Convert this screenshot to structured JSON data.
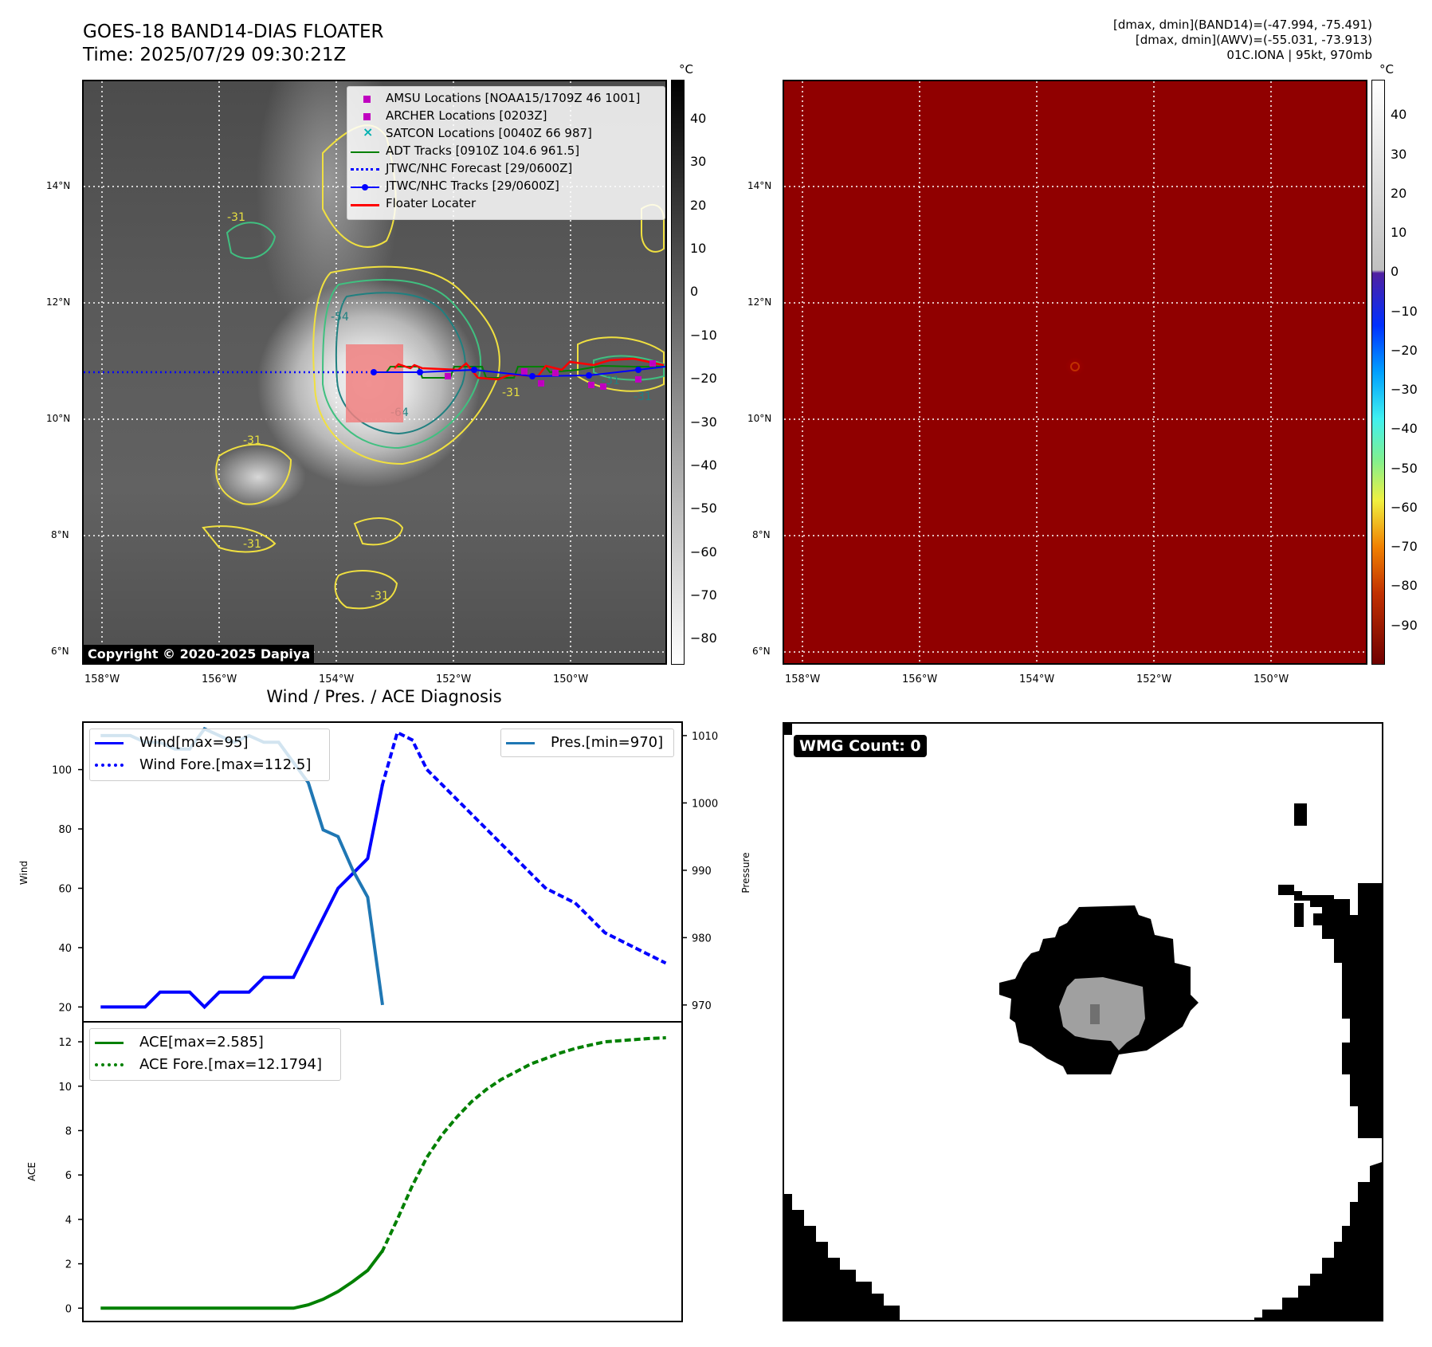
{
  "header": {
    "title_line1": "GOES-18 BAND14-DIAS FLOATER",
    "title_line2": "Time: 2025/07/29 09:30:21Z",
    "stats_line1": "[dmax, dmin](BAND14)=(-47.994, -75.491)",
    "stats_line2": "[dmax, dmin](AWV)=(-55.031, -73.913)",
    "stats_line3": "01C.IONA | 95kt, 970mb"
  },
  "colors": {
    "jtwc_blue": "#0000ff",
    "adt_green": "#008000",
    "floater_red": "#ff0000",
    "amsu_magenta": "#c000c0",
    "satcon_cyan": "#00b0b0",
    "pressure_blue": "#1f77b4",
    "contour_yellow": "#f0e040",
    "contour_green": "#40c080",
    "contour_teal": "#208080"
  },
  "ir_map": {
    "colorbar_unit": "°C",
    "colorbar_ticks": [
      "40",
      "30",
      "20",
      "10",
      "0",
      "−10",
      "−20",
      "−30",
      "−40",
      "−50",
      "−60",
      "−70",
      "−80"
    ],
    "lat_labels": [
      "14°N",
      "12°N",
      "10°N",
      "8°N",
      "6°N"
    ],
    "lon_labels": [
      "158°W",
      "156°W",
      "154°W",
      "152°W",
      "150°W"
    ],
    "copyright": "Copyright © 2020-2025 Dapiya",
    "contour_labels": [
      "-31",
      "-31",
      "-31",
      "-31",
      "-31",
      "-54",
      "-64",
      "-31",
      "-31"
    ],
    "legend": [
      {
        "label": "AMSU Locations [NOAA15/1709Z 46 1001]",
        "marker": "square",
        "color": "#c000c0"
      },
      {
        "label": "ARCHER Locations [0203Z]",
        "marker": "square",
        "color": "#c000c0"
      },
      {
        "label": "SATCON Locations [0040Z 66 987]",
        "marker": "x",
        "color": "#00b0b0"
      },
      {
        "label": "ADT Tracks [0910Z 104.6 961.5]",
        "marker": "line",
        "color": "#008000"
      },
      {
        "label": "JTWC/NHC Forecast [29/0600Z]",
        "marker": "dotted",
        "color": "#0000ff"
      },
      {
        "label": "JTWC/NHC Tracks [29/0600Z]",
        "marker": "line-dot",
        "color": "#0000ff"
      },
      {
        "label": "Floater Locater",
        "marker": "line",
        "color": "#ff0000"
      }
    ]
  },
  "awv_map": {
    "colorbar_unit": "°C",
    "colorbar_ticks": [
      "40",
      "30",
      "20",
      "10",
      "0",
      "−10",
      "−20",
      "−30",
      "−40",
      "−50",
      "−60",
      "−70",
      "−80",
      "−90"
    ],
    "lat_labels": [
      "14°N",
      "12°N",
      "10°N",
      "8°N",
      "6°N"
    ],
    "lon_labels": [
      "158°W",
      "156°W",
      "154°W",
      "152°W",
      "150°W"
    ]
  },
  "wmg": {
    "label": "WMG Count: 0"
  },
  "chart_data": [
    {
      "type": "line",
      "title": "Wind / Pres. / ACE Diagnosis",
      "ylabel": "Wind",
      "y2label": "Pressure",
      "ylim": [
        15,
        116
      ],
      "y2lim": [
        967.5,
        1012
      ],
      "yticks": [
        20,
        40,
        60,
        80,
        100
      ],
      "y2ticks": [
        970,
        980,
        990,
        1000,
        1010
      ],
      "series": [
        {
          "name": "Wind[max=95]",
          "style": "solid",
          "color": "#0000ff",
          "x": [
            0,
            1,
            2,
            3,
            4,
            5,
            6,
            7,
            8,
            9,
            10,
            11,
            12,
            13,
            14,
            15,
            16,
            17,
            18,
            19
          ],
          "values": [
            20,
            20,
            20,
            20,
            25,
            25,
            25,
            20,
            25,
            25,
            25,
            30,
            30,
            30,
            40,
            50,
            60,
            65,
            70,
            95
          ]
        },
        {
          "name": "Wind Fore.[max=112.5]",
          "style": "dotted",
          "color": "#0000ff",
          "x": [
            19,
            20,
            21,
            22,
            23,
            24,
            25,
            26,
            27,
            28,
            29,
            30,
            31,
            32,
            33,
            34,
            35,
            36,
            37,
            38
          ],
          "values": [
            95,
            112.5,
            110,
            100,
            95,
            90,
            85,
            80,
            75,
            70,
            65,
            60,
            57.5,
            55,
            50,
            45,
            42.5,
            40,
            37.5,
            35
          ]
        },
        {
          "name": "Pres.[min=970]",
          "style": "solid",
          "color": "#1f77b4",
          "axis": "right",
          "x": [
            0,
            1,
            2,
            3,
            4,
            5,
            6,
            7,
            8,
            9,
            10,
            11,
            12,
            13,
            14,
            15,
            16,
            17,
            18,
            19
          ],
          "values": [
            1010,
            1010,
            1010,
            1009,
            1009,
            1008,
            1008,
            1011,
            1010,
            1009,
            1010,
            1009,
            1009,
            1006,
            1003,
            996,
            995,
            990,
            986,
            970
          ]
        }
      ],
      "legend_left": [
        "Wind[max=95]",
        "Wind Fore.[max=112.5]"
      ],
      "legend_right": [
        "Pres.[min=970]"
      ]
    },
    {
      "type": "line",
      "ylabel": "ACE",
      "ylim": [
        -0.6,
        12.9
      ],
      "yticks": [
        0,
        2,
        4,
        6,
        8,
        10,
        12
      ],
      "series": [
        {
          "name": "ACE[max=2.585]",
          "style": "solid",
          "color": "#008000",
          "x": [
            0,
            1,
            2,
            3,
            4,
            5,
            6,
            7,
            8,
            9,
            10,
            11,
            12,
            13,
            14,
            15,
            16,
            17,
            18,
            19
          ],
          "values": [
            0,
            0,
            0,
            0,
            0,
            0,
            0,
            0,
            0,
            0,
            0,
            0,
            0,
            0,
            0.15,
            0.4,
            0.75,
            1.2,
            1.7,
            2.585
          ]
        },
        {
          "name": "ACE Fore.[max=12.1794]",
          "style": "dotted",
          "color": "#008000",
          "x": [
            19,
            20,
            21,
            22,
            23,
            24,
            25,
            26,
            27,
            28,
            29,
            30,
            31,
            32,
            33,
            34,
            35,
            36,
            37,
            38
          ],
          "values": [
            2.585,
            4.0,
            5.5,
            6.8,
            7.8,
            8.6,
            9.3,
            9.85,
            10.3,
            10.65,
            11.0,
            11.25,
            11.5,
            11.7,
            11.85,
            12.0,
            12.05,
            12.1,
            12.15,
            12.1794
          ]
        }
      ]
    }
  ]
}
